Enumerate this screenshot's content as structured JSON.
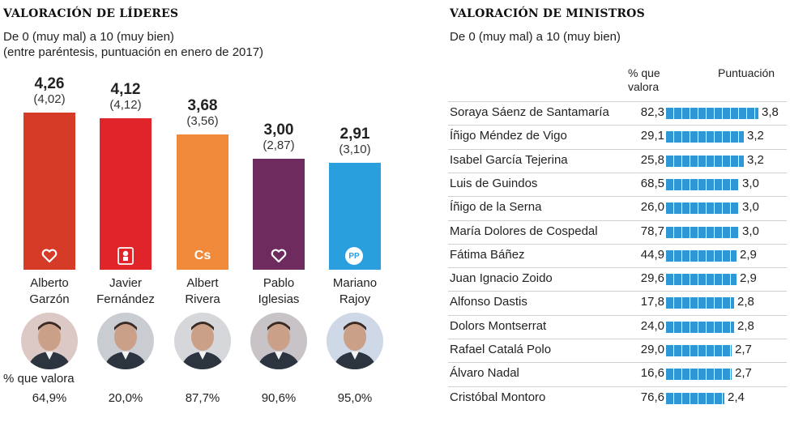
{
  "leaders": {
    "title": "VALORACIÓN DE LÍDERES",
    "subtitle1": "De 0 (muy mal) a 10 (muy bien)",
    "subtitle2": "(entre paréntesis, puntuación en enero de 2017)",
    "pct_label": "% que valora"
  },
  "ministers": {
    "title": "VALORACIÓN DE MINISTROS",
    "subtitle": "De 0 (muy mal) a 10 (muy bien)",
    "col_pct_line1": "% que",
    "col_pct_line2": "valora",
    "col_score": "Puntuación"
  },
  "chart_data": [
    {
      "type": "bar",
      "title": "VALORACIÓN DE LÍDERES",
      "categories": [
        "Alberto Garzón",
        "Javier Fernández",
        "Albert Rivera",
        "Pablo Iglesias",
        "Mariano Rajoy"
      ],
      "rows": [
        {
          "first": "Alberto",
          "last": "Garzón",
          "score": 4.26,
          "score_label": "4,26",
          "prev_label": "(4,02)",
          "pct_label": "64,9%",
          "color": "#d63b27",
          "icon": "heart-icon"
        },
        {
          "first": "Javier",
          "last": "Fernández",
          "score": 4.12,
          "score_label": "4,12",
          "prev_label": "(4,12)",
          "pct_label": "20,0%",
          "color": "#e0242a",
          "icon": "psoe-rose-icon"
        },
        {
          "first": "Albert",
          "last": "Rivera",
          "score": 3.68,
          "score_label": "3,68",
          "prev_label": "(3,56)",
          "pct_label": "87,7%",
          "color": "#f08a3a",
          "icon": "cs-logo-icon",
          "icon_text": "Cs"
        },
        {
          "first": "Pablo",
          "last": "Iglesias",
          "score": 3.0,
          "score_label": "3,00",
          "prev_label": "(2,87)",
          "pct_label": "90,6%",
          "color": "#6d2b5e",
          "icon": "heart-icon"
        },
        {
          "first": "Mariano",
          "last": "Rajoy",
          "score": 2.91,
          "score_label": "2,91",
          "prev_label": "(3,10)",
          "pct_label": "95,0%",
          "color": "#2a9fde",
          "icon": "pp-logo-icon",
          "icon_text": "PP"
        }
      ]
    },
    {
      "type": "bar",
      "title": "VALORACIÓN DE MINISTROS",
      "xlim": [
        0,
        10
      ],
      "rows": [
        {
          "name": "Soraya Sáenz de Santamaría",
          "pct": "82,3",
          "score": 3.8,
          "score_label": "3,8"
        },
        {
          "name": "Íñigo Méndez de Vigo",
          "pct": "29,1",
          "score": 3.2,
          "score_label": "3,2"
        },
        {
          "name": "Isabel García Tejerina",
          "pct": "25,8",
          "score": 3.2,
          "score_label": "3,2"
        },
        {
          "name": "Luis de Guindos",
          "pct": "68,5",
          "score": 3.0,
          "score_label": "3,0"
        },
        {
          "name": "Íñigo de la Serna",
          "pct": "26,0",
          "score": 3.0,
          "score_label": "3,0"
        },
        {
          "name": "María Dolores de Cospedal",
          "pct": "78,7",
          "score": 3.0,
          "score_label": "3,0"
        },
        {
          "name": "Fátima Báñez",
          "pct": "44,9",
          "score": 2.9,
          "score_label": "2,9"
        },
        {
          "name": "Juan Ignacio Zoido",
          "pct": "29,6",
          "score": 2.9,
          "score_label": "2,9"
        },
        {
          "name": "Alfonso Dastis",
          "pct": "17,8",
          "score": 2.8,
          "score_label": "2,8"
        },
        {
          "name": "Dolors Montserrat",
          "pct": "24,0",
          "score": 2.8,
          "score_label": "2,8"
        },
        {
          "name": "Rafael Catalá Polo",
          "pct": "29,0",
          "score": 2.7,
          "score_label": "2,7"
        },
        {
          "name": "Álvaro Nadal",
          "pct": "16,6",
          "score": 2.7,
          "score_label": "2,7"
        },
        {
          "name": "Cristóbal Montoro",
          "pct": "76,6",
          "score": 2.4,
          "score_label": "2,4"
        }
      ]
    }
  ]
}
